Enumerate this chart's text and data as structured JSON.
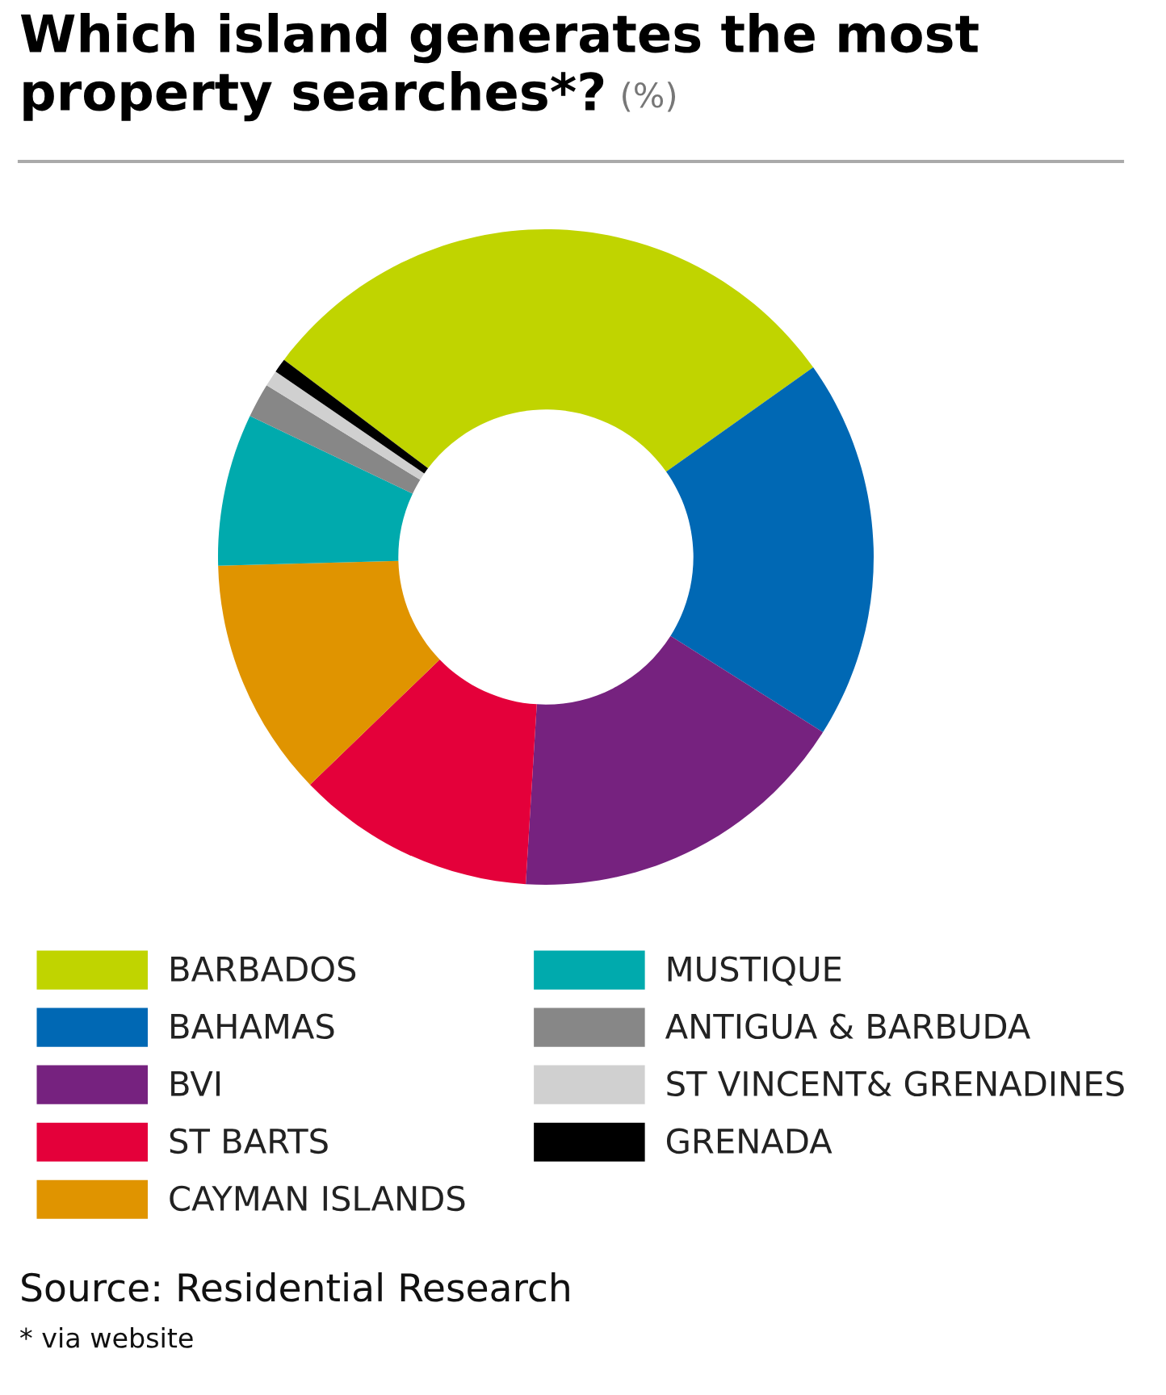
{
  "chart_data": {
    "type": "donut",
    "title": "Which island generates the most property searches*?",
    "subtitle": "(%)",
    "categories": [
      "BARBADOS",
      "BAHAMAS",
      "BVI",
      "ST BARTS",
      "CAYMAN ISLANDS",
      "MUSTIQUE",
      "ANTIGUA & BARBUDA",
      "ST VINCENT& GRENADINES",
      "GRENADA"
    ],
    "values": [
      29.9,
      18.8,
      17.0,
      11.8,
      11.8,
      7.5,
      1.7,
      0.8,
      0.7
    ],
    "colors": [
      "#c0d400",
      "#0068b4",
      "#76227f",
      "#e4003a",
      "#e09400",
      "#00aaad",
      "#878787",
      "#d0d0d0",
      "#000000"
    ],
    "legend": "bottom",
    "annotations": [
      "Source: Residential Research",
      "* via website"
    ]
  }
}
